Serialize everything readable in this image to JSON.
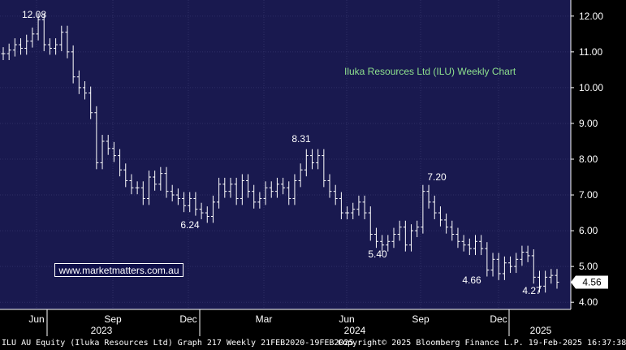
{
  "chart_data": {
    "type": "ohlc",
    "title": "Iluka Resources Ltd (ILU) Weekly Chart",
    "ylim": [
      3.8,
      12.45
    ],
    "y_ticks": [
      "12.00",
      "11.00",
      "10.00",
      "9.00",
      "8.00",
      "7.00",
      "6.00",
      "5.00",
      "4.00"
    ],
    "x_month_labels": [
      "Jun",
      "Sep",
      "Dec",
      "Mar",
      "Jun",
      "Sep",
      "Dec"
    ],
    "x_year_labels": [
      "2023",
      "2024",
      "2025"
    ],
    "last_price": "4.56",
    "annotations": [
      "12.08",
      "6.24",
      "8.31",
      "5.40",
      "7.20",
      "4.66",
      "4.27"
    ],
    "weekly_close": [
      10.95,
      11.05,
      11.2,
      11.1,
      11.3,
      11.5,
      11.9,
      11.2,
      11.1,
      11.2,
      11.55,
      11.0,
      10.3,
      10.0,
      9.85,
      9.3,
      7.9,
      8.5,
      8.3,
      8.1,
      7.7,
      7.4,
      7.2,
      7.2,
      6.9,
      7.5,
      7.3,
      7.6,
      7.1,
      7.0,
      6.9,
      6.7,
      6.9,
      6.6,
      6.5,
      6.4,
      6.8,
      7.3,
      7.1,
      7.3,
      6.9,
      7.4,
      7.1,
      6.8,
      6.9,
      7.2,
      7.1,
      7.3,
      7.2,
      6.9,
      7.4,
      7.7,
      8.1,
      7.9,
      8.1,
      7.4,
      7.1,
      6.9,
      6.5,
      6.5,
      6.6,
      6.8,
      6.5,
      5.9,
      5.7,
      5.6,
      5.7,
      5.9,
      6.1,
      5.6,
      6.0,
      6.1,
      7.1,
      6.8,
      6.5,
      6.3,
      6.1,
      5.9,
      5.7,
      5.6,
      5.5,
      5.7,
      5.5,
      4.9,
      5.2,
      4.8,
      5.1,
      5.0,
      5.2,
      5.4,
      5.3,
      4.7,
      4.45,
      4.7,
      4.75,
      4.56
    ]
  },
  "branding": {
    "site": "www.marketmatters.com.au"
  },
  "footer": {
    "left": "ILU AU Equity (Iluka Resources Ltd) Graph 217  Weekly 21FEB2020-19FEB2025",
    "right": "Copyright© 2025 Bloomberg Finance L.P.  19-Feb-2025 16:37:38"
  },
  "colors": {
    "plot_bg": "#19194f",
    "grid": "#2e2e66",
    "price_line": "#ffffff",
    "title": "#8ee08e",
    "last_price_box": "#ffffff"
  }
}
